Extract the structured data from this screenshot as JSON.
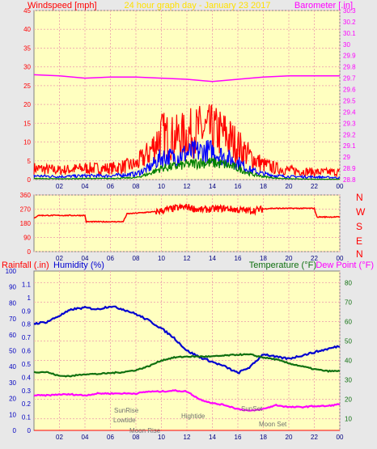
{
  "header": {
    "left_title": "Windspeed [mph]",
    "center_title": "24 hour graph day - January 23 2017",
    "right_title": "Barometer [.in]"
  },
  "direction_labels": [
    "N",
    "W",
    "S",
    "E",
    "N"
  ],
  "bottom_titles": {
    "rainfall": "Rainfall (.in)",
    "humidity": "Humidity (%)",
    "temperature": "Temperature (°F)",
    "dewpoint": "Dew Point (°F)"
  },
  "events": {
    "sunrise": "SunRise",
    "lowtide": "Lowtide",
    "moonrise": "Moon Rise",
    "hightide": "Hightide",
    "sunset": "SunSet",
    "moonset": "Moon Set"
  },
  "colors": {
    "plot_bg": "#ffffc0",
    "frame_bg": "#e8e8e8",
    "grid": "#f0b0b0",
    "wind_gust": "#ff0000",
    "wind_avg": "#0000ff",
    "wind_low": "#008000",
    "barometer": "#ff00ff",
    "direction": "#ff0000",
    "humidity": "#0000d0",
    "temperature": "#107010",
    "dewpoint": "#ff00ff",
    "rain_axis": "#0000c0"
  },
  "chart_data": [
    {
      "type": "line",
      "x_ticks": [
        "02",
        "04",
        "06",
        "08",
        "10",
        "12",
        "14",
        "16",
        "18",
        "20",
        "22",
        "00"
      ],
      "y_left_ticks": [
        0,
        5,
        10,
        15,
        20,
        25,
        30,
        35,
        40,
        45
      ],
      "ylim_left": [
        0,
        45
      ],
      "ylabel_left": "Windspeed [mph]",
      "y_right_ticks": [
        28.8,
        28.9,
        29,
        29.1,
        29.2,
        29.3,
        29.4,
        29.5,
        29.6,
        29.7,
        29.8,
        29.9,
        30,
        30.1,
        30.2,
        30.3
      ],
      "ylim_right": [
        28.8,
        30.3
      ],
      "ylabel_right": "Barometer [.in]",
      "title": "24 hour graph day - January 23 2017",
      "series": [
        {
          "name": "Barometer",
          "axis": "right",
          "x": [
            0,
            2,
            4,
            6,
            8,
            10,
            12,
            13,
            14,
            15,
            16,
            18,
            20,
            22,
            24
          ],
          "values": [
            29.73,
            29.72,
            29.7,
            29.71,
            29.71,
            29.7,
            29.69,
            29.68,
            29.67,
            29.68,
            29.69,
            29.71,
            29.72,
            29.72,
            29.72
          ]
        },
        {
          "name": "Wind gust",
          "axis": "left",
          "x": [
            0,
            2,
            4,
            6,
            8,
            9,
            10,
            11,
            12,
            13,
            14,
            15,
            16,
            17,
            18,
            19,
            20,
            22,
            24
          ],
          "values": [
            3,
            2.5,
            3,
            3,
            4,
            7,
            12,
            11,
            12,
            13,
            13,
            12,
            9,
            6,
            4,
            3,
            2.5,
            2,
            2
          ]
        },
        {
          "name": "Wind average",
          "axis": "left",
          "x": [
            0,
            2,
            4,
            6,
            8,
            9,
            10,
            11,
            12,
            13,
            14,
            15,
            16,
            17,
            18,
            19,
            20,
            22,
            24
          ],
          "values": [
            1,
            0.8,
            1,
            1,
            1.5,
            3,
            6,
            6,
            7,
            7.5,
            7.5,
            6,
            4.5,
            2.5,
            1.5,
            1,
            0.8,
            0.7,
            0.5
          ]
        },
        {
          "name": "Wind low",
          "axis": "left",
          "x": [
            0,
            2,
            4,
            6,
            8,
            9,
            10,
            11,
            12,
            13,
            14,
            15,
            16,
            17,
            18,
            19,
            20,
            22,
            24
          ],
          "values": [
            0.3,
            0.2,
            0.3,
            0.3,
            0.5,
            1.5,
            3,
            3.5,
            4,
            4.5,
            4.5,
            4,
            3,
            1.5,
            0.8,
            0.4,
            0.2,
            0.1,
            0.1
          ]
        }
      ]
    },
    {
      "type": "line",
      "x_ticks": [
        "02",
        "04",
        "06",
        "08",
        "10",
        "12",
        "14",
        "16",
        "18",
        "20",
        "22",
        "00"
      ],
      "y_ticks": [
        0,
        90,
        180,
        270,
        360
      ],
      "ylim": [
        0,
        360
      ],
      "series": [
        {
          "name": "Wind direction",
          "x": [
            0,
            0.3,
            4,
            4.1,
            7,
            7.3,
            9.7,
            10,
            11,
            12,
            13,
            14,
            15,
            16,
            17,
            18,
            18.5,
            22,
            22.2,
            24
          ],
          "values": [
            210,
            230,
            230,
            190,
            190,
            240,
            255,
            260,
            275,
            285,
            265,
            270,
            275,
            265,
            260,
            270,
            275,
            275,
            220,
            220
          ]
        }
      ]
    },
    {
      "type": "line",
      "x_ticks": [
        "02",
        "04",
        "06",
        "08",
        "10",
        "12",
        "14",
        "16",
        "18",
        "20",
        "22",
        "00"
      ],
      "y_rain_ticks": [
        0,
        0.1,
        0.2,
        0.3,
        0.4,
        0.5,
        0.6,
        0.7,
        0.8,
        0.9,
        1,
        1.1
      ],
      "ylim_rain": [
        0,
        1.2
      ],
      "ylabel_rain": "Rainfall (.in)",
      "y_humidity_ticks": [
        0,
        10,
        20,
        30,
        40,
        50,
        60,
        70,
        80,
        90,
        100
      ],
      "ylim_humidity": [
        0,
        100
      ],
      "ylabel_humidity": "Humidity (%)",
      "y_temp_ticks": [
        10,
        20,
        30,
        40,
        50,
        60,
        70,
        80
      ],
      "ylim_temp": [
        4,
        86
      ],
      "ylabel_temp": "Temperature (°F)",
      "ylabel_dew": "Dew Point (°F)",
      "series": [
        {
          "name": "Humidity",
          "axis": "humidity",
          "x": [
            0,
            1,
            2,
            3,
            4,
            5,
            6,
            7,
            8,
            9,
            10,
            11,
            12,
            13,
            14,
            15,
            16,
            17,
            18,
            19,
            20,
            21,
            22,
            23,
            24
          ],
          "values": [
            67,
            68,
            72,
            76,
            77,
            76,
            78,
            76,
            73,
            69,
            64,
            58,
            50,
            46,
            43,
            40,
            36,
            40,
            48,
            46,
            45,
            47,
            49,
            51,
            53
          ]
        },
        {
          "name": "Temperature",
          "axis": "temp",
          "x": [
            0,
            1,
            2,
            3,
            4,
            5,
            6,
            7,
            8,
            9,
            10,
            11,
            12,
            13,
            14,
            15,
            16,
            17,
            18,
            19,
            20,
            21,
            22,
            23,
            24
          ],
          "values": [
            34,
            34,
            32,
            32,
            33,
            33,
            33.5,
            34,
            35,
            37,
            40,
            41.5,
            42,
            42,
            42,
            42.5,
            43,
            43,
            41.5,
            40.5,
            38.5,
            37,
            35.5,
            34.5,
            34.5
          ]
        },
        {
          "name": "Dew Point",
          "axis": "temp",
          "x": [
            0,
            1,
            2,
            3,
            4,
            5,
            6,
            7,
            8,
            9,
            10,
            11,
            12,
            13,
            14,
            15,
            16,
            17,
            18,
            19,
            20,
            21,
            22,
            23,
            24
          ],
          "values": [
            22,
            22,
            22.5,
            22.5,
            22,
            23,
            23,
            23,
            23,
            24,
            24,
            24.5,
            24,
            20,
            18,
            17,
            15,
            14,
            15,
            17,
            16,
            16,
            16.5,
            16.5,
            17.5
          ]
        },
        {
          "name": "Rainfall",
          "axis": "rain",
          "x": [
            0,
            24
          ],
          "values": [
            0,
            0
          ]
        }
      ]
    }
  ]
}
